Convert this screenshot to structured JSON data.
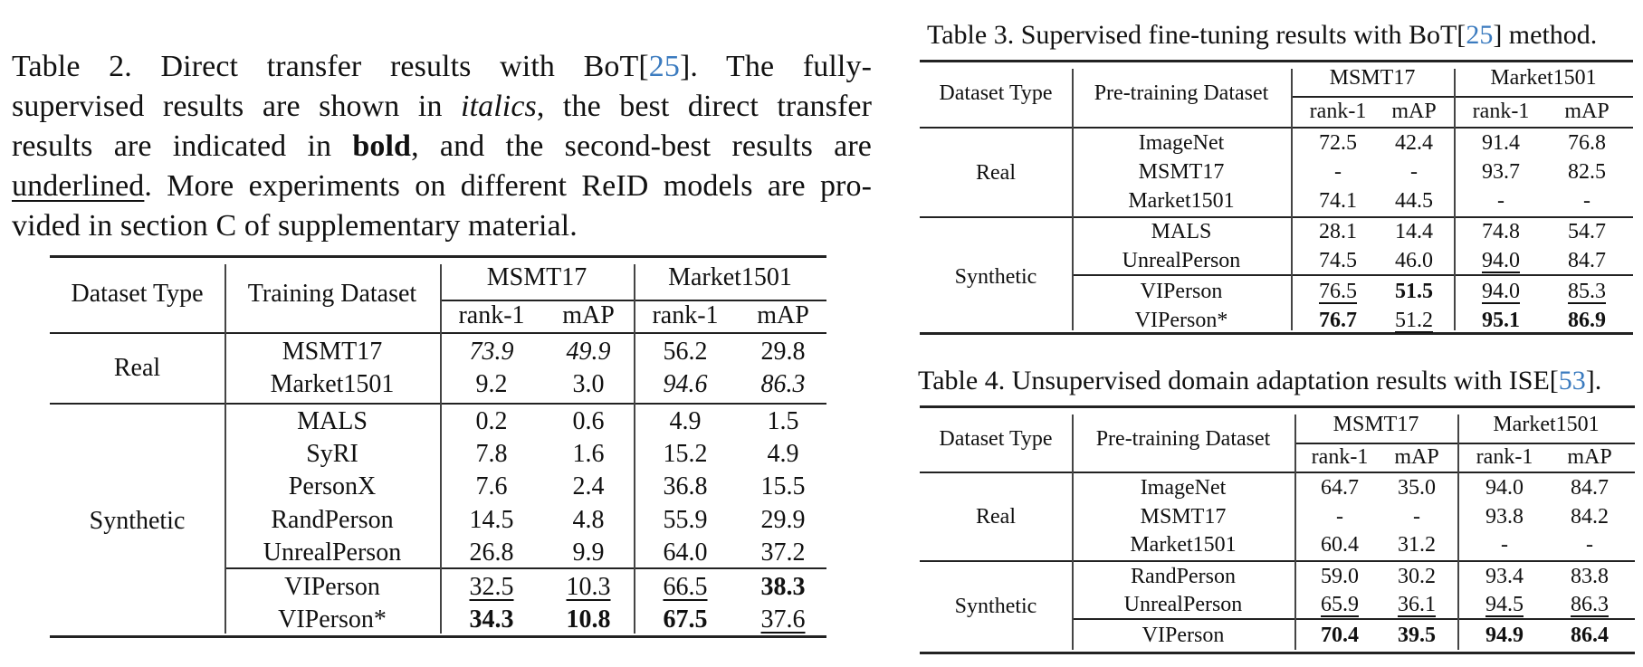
{
  "table2": {
    "caption_lines": [
      [
        "Table 2.  Direct transfer results with BoT[",
        "25",
        "].  The fully-"
      ],
      [
        "supervised results are shown in ",
        "italics",
        ", the best direct transfer"
      ],
      [
        "results are indicated in ",
        "bold",
        ", and the second-best results are"
      ],
      [
        "underlined",
        ". More experiments on different ReID models are pro-"
      ],
      [
        "vided in section C of supplementary material."
      ]
    ],
    "caption": {
      "l1a": "Table 2.  Direct transfer results with BoT[",
      "l1cite": "25",
      "l1b": "].  The fully-",
      "l2a": "supervised results are shown in ",
      "l2i": "italics",
      "l2b": ", the best direct transfer",
      "l3a": "results are indicated in ",
      "l3b": "bold",
      "l3c": ", and the second-best results are",
      "l4u": "underlined",
      "l4b": ". More experiments on different ReID models are pro-",
      "l5": "vided in section C of supplementary material."
    },
    "headers": {
      "dataset_type": "Dataset Type",
      "training_dataset": "Training Dataset",
      "group1": "MSMT17",
      "group2": "Market1501",
      "rank1": "rank-1",
      "map": "mAP"
    },
    "groups": [
      {
        "type": "Real",
        "rows": [
          {
            "dataset": "MSMT17",
            "values": [
              "73.9",
              "49.9",
              "56.2",
              "29.8"
            ],
            "style": [
              "i",
              "i",
              "",
              ""
            ]
          },
          {
            "dataset": "Market1501",
            "values": [
              "9.2",
              "3.0",
              "94.6",
              "86.3"
            ],
            "style": [
              "",
              "",
              "i",
              "i"
            ]
          }
        ]
      },
      {
        "type": "Synthetic",
        "rows": [
          {
            "dataset": "MALS",
            "values": [
              "0.2",
              "0.6",
              "4.9",
              "1.5"
            ],
            "style": [
              "",
              "",
              "",
              ""
            ]
          },
          {
            "dataset": "SyRI",
            "values": [
              "7.8",
              "1.6",
              "15.2",
              "4.9"
            ],
            "style": [
              "",
              "",
              "",
              ""
            ]
          },
          {
            "dataset": "PersonX",
            "values": [
              "7.6",
              "2.4",
              "36.8",
              "15.5"
            ],
            "style": [
              "",
              "",
              "",
              ""
            ]
          },
          {
            "dataset": "RandPerson",
            "values": [
              "14.5",
              "4.8",
              "55.9",
              "29.9"
            ],
            "style": [
              "",
              "",
              "",
              ""
            ]
          },
          {
            "dataset": "UnrealPerson",
            "values": [
              "26.8",
              "9.9",
              "64.0",
              "37.2"
            ],
            "style": [
              "",
              "",
              "",
              ""
            ]
          },
          {
            "dataset": "VIPerson",
            "values": [
              "32.5",
              "10.3",
              "66.5",
              "38.3"
            ],
            "style": [
              "u",
              "u",
              "u",
              "b"
            ]
          },
          {
            "dataset": "VIPerson*",
            "values": [
              "34.3",
              "10.8",
              "67.5",
              "37.6"
            ],
            "style": [
              "b",
              "b",
              "b",
              "u"
            ]
          }
        ]
      }
    ]
  },
  "table3": {
    "caption": {
      "a": "Table 3. Supervised fine-tuning results with BoT[",
      "cite": "25",
      "b": "] method."
    },
    "headers": {
      "dataset_type": "Dataset Type",
      "pretraining_dataset": "Pre-training Dataset",
      "group1": "MSMT17",
      "group2": "Market1501",
      "rank1": "rank-1",
      "map": "mAP"
    },
    "groups": [
      {
        "type": "Real",
        "rows": [
          {
            "dataset": "ImageNet",
            "values": [
              "72.5",
              "42.4",
              "91.4",
              "76.8"
            ],
            "style": [
              "",
              "",
              "",
              ""
            ]
          },
          {
            "dataset": "MSMT17",
            "values": [
              "-",
              "-",
              "93.7",
              "82.5"
            ],
            "style": [
              "",
              "",
              "",
              ""
            ]
          },
          {
            "dataset": "Market1501",
            "values": [
              "74.1",
              "44.5",
              "-",
              "-"
            ],
            "style": [
              "",
              "",
              "",
              ""
            ]
          }
        ]
      },
      {
        "type": "Synthetic",
        "rows": [
          {
            "dataset": "MALS",
            "values": [
              "28.1",
              "14.4",
              "74.8",
              "54.7"
            ],
            "style": [
              "",
              "",
              "",
              ""
            ]
          },
          {
            "dataset": "UnrealPerson",
            "values": [
              "74.5",
              "46.0",
              "94.0",
              "84.7"
            ],
            "style": [
              "",
              "",
              "u",
              ""
            ]
          },
          {
            "dataset": "VIPerson",
            "values": [
              "76.5",
              "51.5",
              "94.0",
              "85.3"
            ],
            "style": [
              "u",
              "b",
              "u",
              "u"
            ]
          },
          {
            "dataset": "VIPerson*",
            "values": [
              "76.7",
              "51.2",
              "95.1",
              "86.9"
            ],
            "style": [
              "b",
              "u",
              "b",
              "b"
            ]
          }
        ]
      }
    ]
  },
  "table4": {
    "caption": {
      "a": "Table 4. Unsupervised domain adaptation results with ISE[",
      "cite": "53",
      "b": "]."
    },
    "headers": {
      "dataset_type": "Dataset Type",
      "pretraining_dataset": "Pre-training Dataset",
      "group1": "MSMT17",
      "group2": "Market1501",
      "rank1": "rank-1",
      "map": "mAP"
    },
    "groups": [
      {
        "type": "Real",
        "rows": [
          {
            "dataset": "ImageNet",
            "values": [
              "64.7",
              "35.0",
              "94.0",
              "84.7"
            ],
            "style": [
              "",
              "",
              "",
              ""
            ]
          },
          {
            "dataset": "MSMT17",
            "values": [
              "-",
              "-",
              "93.8",
              "84.2"
            ],
            "style": [
              "",
              "",
              "",
              ""
            ]
          },
          {
            "dataset": "Market1501",
            "values": [
              "60.4",
              "31.2",
              "-",
              "-"
            ],
            "style": [
              "",
              "",
              "",
              ""
            ]
          }
        ]
      },
      {
        "type": "Synthetic",
        "rows": [
          {
            "dataset": "RandPerson",
            "values": [
              "59.0",
              "30.2",
              "93.4",
              "83.8"
            ],
            "style": [
              "",
              "",
              "",
              ""
            ]
          },
          {
            "dataset": "UnrealPerson",
            "values": [
              "65.9",
              "36.1",
              "94.5",
              "86.3"
            ],
            "style": [
              "u",
              "u",
              "u",
              "u"
            ]
          },
          {
            "dataset": "VIPerson",
            "values": [
              "70.4",
              "39.5",
              "94.9",
              "86.4"
            ],
            "style": [
              "b",
              "b",
              "b",
              "b"
            ]
          }
        ]
      }
    ]
  },
  "colors": {
    "citation": "#3b7bbf",
    "text": "#111111",
    "rule": "#222222"
  }
}
